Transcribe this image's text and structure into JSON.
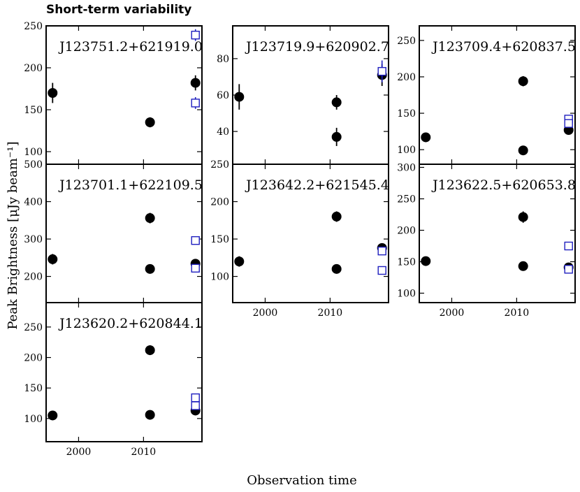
{
  "figure": {
    "title": "Short-term variability",
    "ylabel": "Peak Brightness [μJy beam⁻¹]",
    "xlabel": "Observation time",
    "xticks": [
      2000,
      2010
    ],
    "xlim": [
      1995,
      2019
    ],
    "colors": {
      "filled": "#000000",
      "open": "#1f1fbf",
      "axis": "#000000"
    }
  },
  "chart_data": [
    {
      "type": "scatter",
      "title": "J123751.2+621919.0",
      "ylim": [
        85,
        250
      ],
      "yticks": [
        100,
        150,
        200,
        250
      ],
      "series": [
        {
          "marker": "filled-circle",
          "points": [
            {
              "x": 1996,
              "y": 170,
              "err": 12
            },
            {
              "x": 2011,
              "y": 135,
              "err": 6
            },
            {
              "x": 2018,
              "y": 182,
              "err": 9
            }
          ]
        },
        {
          "marker": "open-square",
          "points": [
            {
              "x": 2018,
              "y": 239,
              "err": 7
            },
            {
              "x": 2018,
              "y": 158,
              "err": 7
            }
          ]
        }
      ]
    },
    {
      "type": "scatter",
      "title": "J123719.9+620902.7",
      "ylim": [
        22,
        98
      ],
      "yticks": [
        40,
        60,
        80
      ],
      "series": [
        {
          "marker": "filled-circle",
          "points": [
            {
              "x": 1996,
              "y": 59,
              "err": 7
            },
            {
              "x": 2011,
              "y": 56,
              "err": 4
            },
            {
              "x": 2011,
              "y": 37,
              "err": 5
            },
            {
              "x": 2018,
              "y": 71,
              "err": 6
            }
          ]
        },
        {
          "marker": "open-square",
          "points": [
            {
              "x": 2018,
              "y": 73,
              "err": 6
            }
          ]
        }
      ]
    },
    {
      "type": "scatter",
      "title": "J123709.4+620837.5",
      "ylim": [
        80,
        270
      ],
      "yticks": [
        100,
        150,
        200,
        250
      ],
      "series": [
        {
          "marker": "filled-circle",
          "points": [
            {
              "x": 1996,
              "y": 117,
              "err": 5
            },
            {
              "x": 2011,
              "y": 194,
              "err": 7
            },
            {
              "x": 2011,
              "y": 99,
              "err": 3
            },
            {
              "x": 2018,
              "y": 127,
              "err": 4
            }
          ]
        },
        {
          "marker": "open-square",
          "points": [
            {
              "x": 2018,
              "y": 142,
              "err": 4
            },
            {
              "x": 2018,
              "y": 136,
              "err": 4
            }
          ]
        }
      ]
    },
    {
      "type": "scatter",
      "title": "J123701.1+622109.5",
      "ylim": [
        130,
        500
      ],
      "yticks": [
        200,
        300,
        400,
        500
      ],
      "series": [
        {
          "marker": "filled-circle",
          "points": [
            {
              "x": 1996,
              "y": 246,
              "err": 14
            },
            {
              "x": 2011,
              "y": 356,
              "err": 14
            },
            {
              "x": 2011,
              "y": 220,
              "err": 8
            },
            {
              "x": 2018,
              "y": 234,
              "err": 8
            }
          ]
        },
        {
          "marker": "open-square",
          "points": [
            {
              "x": 2018,
              "y": 296,
              "err": 6
            },
            {
              "x": 2018,
              "y": 222,
              "err": 6
            }
          ]
        }
      ]
    },
    {
      "type": "scatter",
      "title": "J123642.2+621545.4",
      "ylim": [
        65,
        250
      ],
      "yticks": [
        100,
        150,
        200,
        250
      ],
      "series": [
        {
          "marker": "filled-circle",
          "points": [
            {
              "x": 1996,
              "y": 120,
              "err": 7
            },
            {
              "x": 2011,
              "y": 180,
              "err": 7
            },
            {
              "x": 2011,
              "y": 110,
              "err": 4
            },
            {
              "x": 2018,
              "y": 138,
              "err": 6
            }
          ]
        },
        {
          "marker": "open-square",
          "points": [
            {
              "x": 2018,
              "y": 108,
              "err": 4
            },
            {
              "x": 2018,
              "y": 134,
              "err": 4
            }
          ]
        }
      ]
    },
    {
      "type": "scatter",
      "title": "J123622.5+620653.8",
      "ylim": [
        85,
        305
      ],
      "yticks": [
        100,
        150,
        200,
        250,
        300
      ],
      "series": [
        {
          "marker": "filled-circle",
          "points": [
            {
              "x": 1996,
              "y": 151,
              "err": 6
            },
            {
              "x": 2011,
              "y": 221,
              "err": 9
            },
            {
              "x": 2011,
              "y": 143,
              "err": 4
            },
            {
              "x": 2018,
              "y": 141,
              "err": 5
            }
          ]
        },
        {
          "marker": "open-square",
          "points": [
            {
              "x": 2018,
              "y": 175,
              "err": 4
            },
            {
              "x": 2018,
              "y": 138,
              "err": 4
            }
          ]
        }
      ]
    },
    {
      "type": "scatter",
      "title": "J123620.2+620844.1",
      "ylim": [
        62,
        290
      ],
      "yticks": [
        100,
        150,
        200,
        250
      ],
      "series": [
        {
          "marker": "filled-circle",
          "points": [
            {
              "x": 1996,
              "y": 105,
              "err": 5
            },
            {
              "x": 2011,
              "y": 212,
              "err": 8
            },
            {
              "x": 2011,
              "y": 106,
              "err": 4
            },
            {
              "x": 2018,
              "y": 113,
              "err": 4
            }
          ]
        },
        {
          "marker": "open-square",
          "points": [
            {
              "x": 2018,
              "y": 134,
              "err": 4
            },
            {
              "x": 2018,
              "y": 121,
              "err": 4
            }
          ]
        }
      ]
    }
  ]
}
